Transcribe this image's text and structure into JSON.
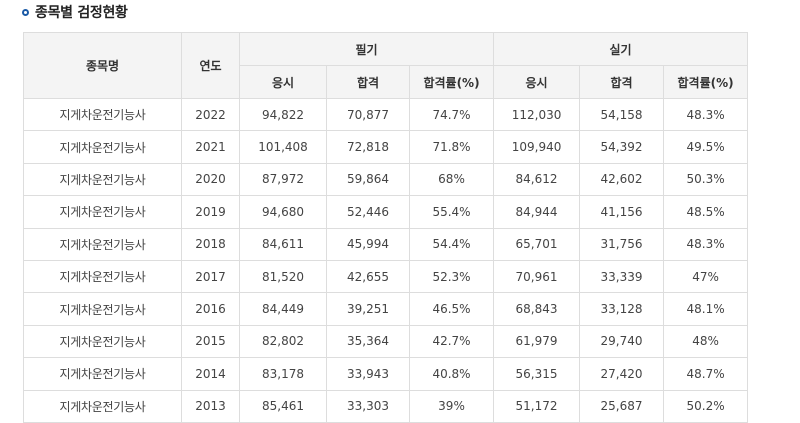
{
  "section_title": "종목별 검정현황",
  "table": {
    "headers": {
      "name": "종목명",
      "year": "연도",
      "written": "필기",
      "practical": "실기",
      "sub": [
        "응시",
        "합격",
        "합격률(%)"
      ]
    },
    "rows": [
      {
        "name": "지게차운전기능사",
        "year": "2022",
        "w_applied": "94,822",
        "w_passed": "70,877",
        "w_rate": "74.7%",
        "p_applied": "112,030",
        "p_passed": "54,158",
        "p_rate": "48.3%"
      },
      {
        "name": "지게차운전기능사",
        "year": "2021",
        "w_applied": "101,408",
        "w_passed": "72,818",
        "w_rate": "71.8%",
        "p_applied": "109,940",
        "p_passed": "54,392",
        "p_rate": "49.5%"
      },
      {
        "name": "지게차운전기능사",
        "year": "2020",
        "w_applied": "87,972",
        "w_passed": "59,864",
        "w_rate": "68%",
        "p_applied": "84,612",
        "p_passed": "42,602",
        "p_rate": "50.3%"
      },
      {
        "name": "지게차운전기능사",
        "year": "2019",
        "w_applied": "94,680",
        "w_passed": "52,446",
        "w_rate": "55.4%",
        "p_applied": "84,944",
        "p_passed": "41,156",
        "p_rate": "48.5%"
      },
      {
        "name": "지게차운전기능사",
        "year": "2018",
        "w_applied": "84,611",
        "w_passed": "45,994",
        "w_rate": "54.4%",
        "p_applied": "65,701",
        "p_passed": "31,756",
        "p_rate": "48.3%"
      },
      {
        "name": "지게차운전기능사",
        "year": "2017",
        "w_applied": "81,520",
        "w_passed": "42,655",
        "w_rate": "52.3%",
        "p_applied": "70,961",
        "p_passed": "33,339",
        "p_rate": "47%"
      },
      {
        "name": "지게차운전기능사",
        "year": "2016",
        "w_applied": "84,449",
        "w_passed": "39,251",
        "w_rate": "46.5%",
        "p_applied": "68,843",
        "p_passed": "33,128",
        "p_rate": "48.1%"
      },
      {
        "name": "지게차운전기능사",
        "year": "2015",
        "w_applied": "82,802",
        "w_passed": "35,364",
        "w_rate": "42.7%",
        "p_applied": "61,979",
        "p_passed": "29,740",
        "p_rate": "48%"
      },
      {
        "name": "지게차운전기능사",
        "year": "2014",
        "w_applied": "83,178",
        "w_passed": "33,943",
        "w_rate": "40.8%",
        "p_applied": "56,315",
        "p_passed": "27,420",
        "p_rate": "48.7%"
      },
      {
        "name": "지게차운전기능사",
        "year": "2013",
        "w_applied": "85,461",
        "w_passed": "33,303",
        "w_rate": "39%",
        "p_applied": "51,172",
        "p_passed": "25,687",
        "p_rate": "50.2%"
      }
    ]
  }
}
